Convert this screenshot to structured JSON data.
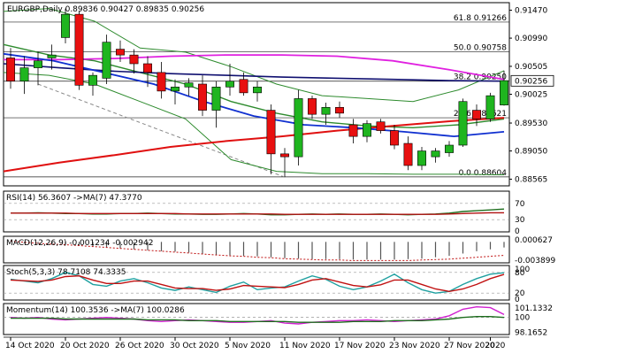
{
  "chart_data": {
    "type": "candlestick",
    "symbol": "EURGBP",
    "timeframe": "Daily",
    "ohlc_header": {
      "open": "0.89836",
      "high": "0.90427",
      "low": "0.89835",
      "close": "0.90256"
    },
    "header_text": "EURGBP,Daily  0.89836 0.90427 0.89835 0.90256",
    "current_price": "0.90256",
    "price_axis": {
      "min": 0.8845,
      "max": 0.916,
      "ticks": [
        "0.91470",
        "0.90990",
        "0.90505",
        "0.90025",
        "0.89530",
        "0.89050",
        "0.88565"
      ]
    },
    "fib_levels": [
      {
        "label": "61.8 0.91266",
        "value": 0.91266
      },
      {
        "label": "50.0 0.90758",
        "value": 0.90758
      },
      {
        "label": "38.2 0.90250",
        "value": 0.9025
      },
      {
        "label": "23.6 0.89621",
        "value": 0.89621
      },
      {
        "label": "0.0 0.88604",
        "value": 0.88604
      }
    ],
    "candles": [
      {
        "o": 0.9065,
        "h": 0.9082,
        "l": 0.9012,
        "c": 0.9025
      },
      {
        "o": 0.9025,
        "h": 0.9068,
        "l": 0.9003,
        "c": 0.9048
      },
      {
        "o": 0.9048,
        "h": 0.9075,
        "l": 0.9018,
        "c": 0.906
      },
      {
        "o": 0.9065,
        "h": 0.9088,
        "l": 0.9045,
        "c": 0.907
      },
      {
        "o": 0.91,
        "h": 0.915,
        "l": 0.909,
        "c": 0.914
      },
      {
        "o": 0.914,
        "h": 0.9145,
        "l": 0.901,
        "c": 0.9018
      },
      {
        "o": 0.9018,
        "h": 0.904,
        "l": 0.9,
        "c": 0.9035
      },
      {
        "o": 0.903,
        "h": 0.9105,
        "l": 0.902,
        "c": 0.9092
      },
      {
        "o": 0.908,
        "h": 0.9095,
        "l": 0.9058,
        "c": 0.907
      },
      {
        "o": 0.907,
        "h": 0.908,
        "l": 0.9038,
        "c": 0.9055
      },
      {
        "o": 0.9055,
        "h": 0.9068,
        "l": 0.9015,
        "c": 0.904
      },
      {
        "o": 0.904,
        "h": 0.9058,
        "l": 0.8995,
        "c": 0.9008
      },
      {
        "o": 0.9008,
        "h": 0.9028,
        "l": 0.8985,
        "c": 0.9015
      },
      {
        "o": 0.9015,
        "h": 0.903,
        "l": 0.9,
        "c": 0.9022
      },
      {
        "o": 0.902,
        "h": 0.9035,
        "l": 0.8965,
        "c": 0.8975
      },
      {
        "o": 0.8975,
        "h": 0.9025,
        "l": 0.8945,
        "c": 0.9015
      },
      {
        "o": 0.9015,
        "h": 0.9055,
        "l": 0.9,
        "c": 0.9025
      },
      {
        "o": 0.9028,
        "h": 0.904,
        "l": 0.9,
        "c": 0.9005
      },
      {
        "o": 0.9005,
        "h": 0.9025,
        "l": 0.899,
        "c": 0.9015
      },
      {
        "o": 0.8975,
        "h": 0.8985,
        "l": 0.8865,
        "c": 0.89
      },
      {
        "o": 0.89,
        "h": 0.891,
        "l": 0.886,
        "c": 0.8895
      },
      {
        "o": 0.8895,
        "h": 0.901,
        "l": 0.888,
        "c": 0.8995
      },
      {
        "o": 0.8995,
        "h": 0.9,
        "l": 0.896,
        "c": 0.8968
      },
      {
        "o": 0.8968,
        "h": 0.8988,
        "l": 0.895,
        "c": 0.898
      },
      {
        "o": 0.898,
        "h": 0.899,
        "l": 0.8962,
        "c": 0.897
      },
      {
        "o": 0.895,
        "h": 0.896,
        "l": 0.8918,
        "c": 0.893
      },
      {
        "o": 0.893,
        "h": 0.8958,
        "l": 0.892,
        "c": 0.8952
      },
      {
        "o": 0.8955,
        "h": 0.896,
        "l": 0.8935,
        "c": 0.894
      },
      {
        "o": 0.894,
        "h": 0.895,
        "l": 0.8908,
        "c": 0.8915
      },
      {
        "o": 0.8918,
        "h": 0.893,
        "l": 0.8872,
        "c": 0.888
      },
      {
        "o": 0.888,
        "h": 0.8912,
        "l": 0.8872,
        "c": 0.8905
      },
      {
        "o": 0.8895,
        "h": 0.891,
        "l": 0.8885,
        "c": 0.8905
      },
      {
        "o": 0.8902,
        "h": 0.8922,
        "l": 0.8895,
        "c": 0.8915
      },
      {
        "o": 0.8915,
        "h": 0.8995,
        "l": 0.8912,
        "c": 0.899
      },
      {
        "o": 0.8975,
        "h": 0.8985,
        "l": 0.8948,
        "c": 0.896
      },
      {
        "o": 0.896,
        "h": 0.9005,
        "l": 0.8955,
        "c": 0.9
      },
      {
        "o": 0.8984,
        "h": 0.9043,
        "l": 0.8983,
        "c": 0.9026
      }
    ],
    "x_axis_labels": [
      {
        "label": "14 Oct 2020",
        "index": 0
      },
      {
        "label": "20 Oct 2020",
        "index": 4
      },
      {
        "label": "26 Oct 2020",
        "index": 8
      },
      {
        "label": "30 Oct 2020",
        "index": 12
      },
      {
        "label": "5 Nov 2020",
        "index": 16
      },
      {
        "label": "11 Nov 2020",
        "index": 20
      },
      {
        "label": "17 Nov 2020",
        "index": 24
      },
      {
        "label": "23 Nov 2020",
        "index": 28
      },
      {
        "label": "27 Nov 2020",
        "index": 32
      },
      {
        "label": "2020",
        "index": 35
      }
    ],
    "overlays": {
      "red_ma": {
        "color": "#e01010",
        "values": [
          0.887,
          0.8885,
          0.8898,
          0.8912,
          0.8922,
          0.893,
          0.894,
          0.8948,
          0.8956,
          0.8962
        ]
      },
      "navy_ma": {
        "color": "#101070",
        "values": [
          0.9055,
          0.9048,
          0.9042,
          0.9038,
          0.9035,
          0.9032,
          0.903,
          0.9028,
          0.9026,
          0.9025
        ]
      },
      "magenta_ma": {
        "color": "#e020e0",
        "values": [
          0.9062,
          0.9062,
          0.9064,
          0.9068,
          0.907,
          0.907,
          0.9068,
          0.906,
          0.9045,
          0.9028
        ]
      },
      "blue_ma": {
        "color": "#1030d0",
        "values": [
          0.9072,
          0.906,
          0.904,
          0.902,
          0.899,
          0.8965,
          0.895,
          0.8945,
          0.8938,
          0.893,
          0.8938
        ]
      },
      "bollinger": {
        "color": "#2e8b2e",
        "upper": [
          0.9145,
          0.915,
          0.9128,
          0.9082,
          0.9075,
          0.905,
          0.902,
          0.9,
          0.8995,
          0.899,
          0.901,
          0.9043
        ],
        "middle": [
          0.9088,
          0.907,
          0.906,
          0.904,
          0.902,
          0.899,
          0.897,
          0.8955,
          0.8948,
          0.8945,
          0.895,
          0.896
        ],
        "lower": [
          0.904,
          0.9035,
          0.902,
          0.899,
          0.896,
          0.889,
          0.887,
          0.8866,
          0.8866,
          0.8865,
          0.8865,
          0.8864
        ]
      }
    },
    "panels": [
      {
        "id": "rsi",
        "title": "RSI(14) 56.3607  ->MA(7) 47.3770",
        "range": [
          0,
          100
        ],
        "ticks": [
          "70",
          "30",
          "0"
        ],
        "levels": [
          70,
          30
        ],
        "series": [
          {
            "color": "#1e6e1e",
            "values": [
              46,
              46,
              47,
              46,
              45,
              45,
              44,
              44,
              45,
              45,
              46,
              45,
              44,
              44,
              43,
              43,
              44,
              45,
              44,
              42,
              42,
              43,
              44,
              43,
              44,
              43,
              43,
              44,
              43,
              42,
              43,
              44,
              46,
              50,
              52,
              54,
              56
            ]
          },
          {
            "color": "#b01010",
            "values": [
              46,
              46,
              46,
              46,
              46,
              45,
              45,
              45,
              45,
              45,
              45,
              45,
              45,
              44,
              44,
              44,
              44,
              44,
              44,
              44,
              43,
              43,
              43,
              43,
              43,
              43,
              43,
              43,
              43,
              43,
              43,
              43,
              44,
              45,
              46,
              47,
              47
            ]
          }
        ]
      },
      {
        "id": "macd",
        "title": "MACD(12,26,9) -0.001234 -0.002942",
        "range": [
          -0.0045,
          0.0012
        ],
        "ticks": [
          "0.000627",
          "-0.003899"
        ],
        "histogram": [
          0.0,
          -0.0003,
          -0.0005,
          -0.0006,
          -0.0006,
          -0.0008,
          -0.001,
          -0.0012,
          -0.0014,
          -0.0016,
          -0.0018,
          -0.002,
          -0.0021,
          -0.0023,
          -0.0026,
          -0.0028,
          -0.0029,
          -0.003,
          -0.0031,
          -0.0033,
          -0.0035,
          -0.0036,
          -0.0037,
          -0.0037,
          -0.0037,
          -0.0038,
          -0.0038,
          -0.0038,
          -0.0038,
          -0.0037,
          -0.0036,
          -0.0033,
          -0.003,
          -0.0025,
          -0.002,
          -0.0016,
          -0.0012
        ],
        "signal": {
          "color": "#c01010",
          "values": [
            0.0002,
            -0.0001,
            -0.0003,
            -0.0005,
            -0.0006,
            -0.0008,
            -0.001,
            -0.0012,
            -0.0014,
            -0.0016,
            -0.0018,
            -0.002,
            -0.0022,
            -0.0024,
            -0.0026,
            -0.0028,
            -0.003,
            -0.0031,
            -0.0033,
            -0.0034,
            -0.0036,
            -0.0037,
            -0.0038,
            -0.0039,
            -0.0039,
            -0.004,
            -0.004,
            -0.004,
            -0.004,
            -0.004,
            -0.0039,
            -0.0038,
            -0.0037,
            -0.0035,
            -0.0033,
            -0.0031,
            -0.0029
          ]
        }
      },
      {
        "id": "stoch",
        "title": "Stoch(5,3,3) 78.7108 74.3335",
        "range": [
          0,
          100
        ],
        "ticks": [
          "100",
          "80",
          "20",
          "0"
        ],
        "levels": [
          80,
          20
        ],
        "series": [
          {
            "color": "#1fa0a0",
            "values": [
              60,
              55,
              50,
              62,
              80,
              70,
              45,
              40,
              55,
              62,
              50,
              35,
              28,
              38,
              30,
              22,
              40,
              52,
              30,
              35,
              38,
              55,
              70,
              60,
              40,
              30,
              38,
              55,
              75,
              50,
              30,
              20,
              25,
              45,
              62,
              75,
              79
            ]
          },
          {
            "color": "#c01010",
            "values": [
              58,
              56,
              54,
              58,
              68,
              70,
              58,
              48,
              48,
              55,
              55,
              45,
              35,
              33,
              33,
              28,
              32,
              42,
              40,
              38,
              36,
              45,
              58,
              62,
              52,
              42,
              38,
              44,
              58,
              58,
              45,
              32,
              25,
              32,
              45,
              62,
              74
            ]
          }
        ]
      },
      {
        "id": "momentum",
        "title": "Momentum(14) 100.3536  ->MA(7) 100.0286",
        "range": [
          97.9,
          101.7
        ],
        "ticks": [
          "101.1332",
          "100",
          "98.1652"
        ],
        "levels": [
          100
        ],
        "series": [
          {
            "color": "#d020d0",
            "values": [
              100.0,
              99.9,
              100.0,
              99.8,
              99.7,
              99.8,
              99.9,
              100.0,
              99.9,
              99.8,
              99.6,
              99.5,
              99.6,
              99.7,
              99.6,
              99.5,
              99.4,
              99.4,
              99.5,
              99.6,
              99.3,
              99.2,
              99.4,
              99.5,
              99.6,
              99.6,
              99.7,
              99.6,
              99.5,
              99.6,
              99.7,
              99.8,
              100.2,
              101.0,
              101.3,
              101.2,
              100.35
            ]
          },
          {
            "color": "#1e6e1e",
            "values": [
              99.9,
              99.9,
              99.9,
              99.9,
              99.8,
              99.8,
              99.8,
              99.8,
              99.8,
              99.8,
              99.7,
              99.7,
              99.7,
              99.6,
              99.6,
              99.6,
              99.5,
              99.5,
              99.5,
              99.5,
              99.5,
              99.4,
              99.4,
              99.4,
              99.4,
              99.5,
              99.5,
              99.5,
              99.6,
              99.6,
              99.6,
              99.7,
              99.8,
              100.0,
              100.1,
              100.1,
              100.0
            ]
          }
        ]
      }
    ]
  }
}
